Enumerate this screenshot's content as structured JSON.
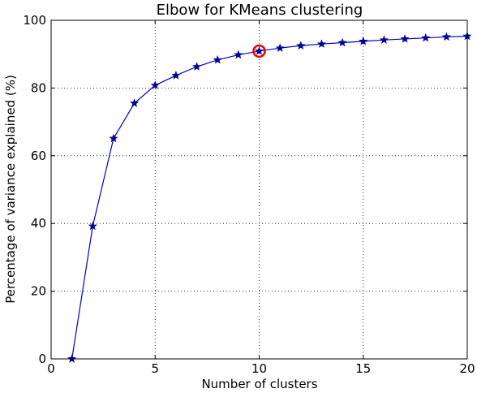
{
  "chart_data": {
    "type": "line",
    "title": "Elbow for KMeans clustering",
    "xlabel": "Number of clusters",
    "ylabel": "Percentage of variance explained (%)",
    "xlim": [
      0,
      20
    ],
    "ylim": [
      0,
      100
    ],
    "xticks": [
      0,
      5,
      10,
      15,
      20
    ],
    "yticks": [
      0,
      20,
      40,
      60,
      80,
      100
    ],
    "grid": true,
    "series": [
      {
        "name": "variance explained",
        "color": "#0000cc",
        "marker": "star",
        "x": [
          1,
          2,
          3,
          4,
          5,
          6,
          7,
          8,
          9,
          10,
          11,
          12,
          13,
          14,
          15,
          16,
          17,
          18,
          19,
          20
        ],
        "y": [
          0,
          39.2,
          65.1,
          75.5,
          80.8,
          83.7,
          86.3,
          88.3,
          89.8,
          90.9,
          91.8,
          92.5,
          93.0,
          93.4,
          93.8,
          94.2,
          94.5,
          94.8,
          95.1,
          95.3
        ]
      }
    ],
    "highlight": {
      "x": 10,
      "y": 90.9,
      "color": "#ee0000",
      "shape": "circle"
    }
  }
}
